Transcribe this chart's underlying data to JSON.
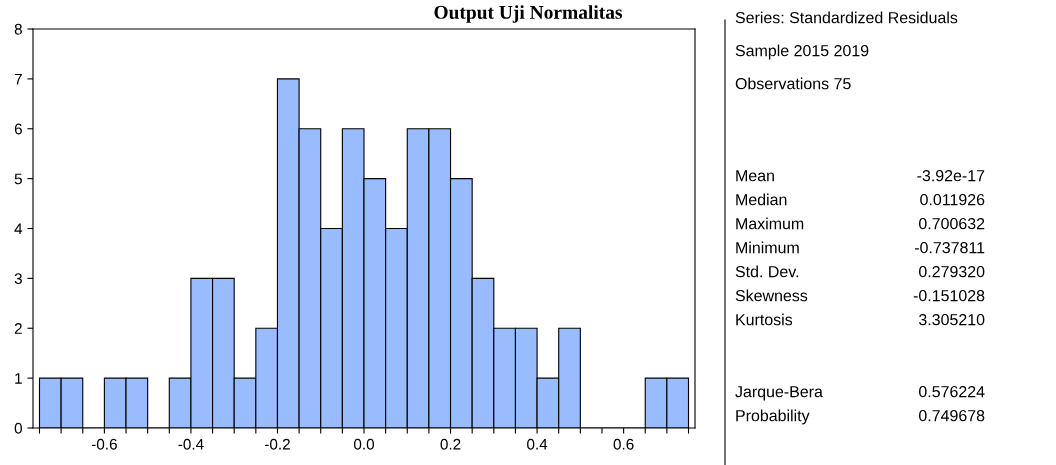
{
  "chart_data": {
    "type": "histogram",
    "title": "Output Uji Normalitas",
    "bins": [
      -0.75,
      -0.7,
      -0.65,
      -0.6,
      -0.55,
      -0.5,
      -0.45,
      -0.4,
      -0.35,
      -0.3,
      -0.25,
      -0.2,
      -0.15,
      -0.1,
      -0.05,
      0,
      0.05,
      0.1,
      0.15,
      0.2,
      0.25,
      0.3,
      0.35,
      0.4,
      0.45,
      0.5,
      0.55,
      0.6,
      0.65,
      0.7,
      0.75
    ],
    "values": [
      1,
      1,
      0,
      1,
      1,
      0,
      1,
      3,
      3,
      1,
      2,
      7,
      6,
      4,
      6,
      5,
      4,
      6,
      6,
      5,
      3,
      2,
      2,
      1,
      2,
      0,
      0,
      0,
      1,
      1
    ],
    "color": "#99bbff",
    "xlim": [
      -0.765,
      0.765
    ],
    "xticks": [
      {
        "value": -0.75,
        "label": null
      },
      {
        "value": -0.7,
        "label": null
      },
      {
        "value": -0.65,
        "label": null
      },
      {
        "value": -0.6,
        "label": "-0.6"
      },
      {
        "value": -0.55,
        "label": null
      },
      {
        "value": -0.5,
        "label": null
      },
      {
        "value": -0.45,
        "label": null
      },
      {
        "value": -0.4,
        "label": "-0.4"
      },
      {
        "value": -0.35,
        "label": null
      },
      {
        "value": -0.3,
        "label": null
      },
      {
        "value": -0.25,
        "label": null
      },
      {
        "value": -0.2,
        "label": "-0.2"
      },
      {
        "value": -0.15,
        "label": null
      },
      {
        "value": -0.1,
        "label": null
      },
      {
        "value": -0.05,
        "label": null
      },
      {
        "value": 0,
        "label": "0.0"
      },
      {
        "value": 0.05,
        "label": null
      },
      {
        "value": 0.1,
        "label": null
      },
      {
        "value": 0.15,
        "label": null
      },
      {
        "value": 0.2,
        "label": "0.2"
      },
      {
        "value": 0.25,
        "label": null
      },
      {
        "value": 0.3,
        "label": null
      },
      {
        "value": 0.35,
        "label": null
      },
      {
        "value": 0.4,
        "label": "0.4"
      },
      {
        "value": 0.45,
        "label": null
      },
      {
        "value": 0.5,
        "label": null
      },
      {
        "value": 0.55,
        "label": null
      },
      {
        "value": 0.6,
        "label": "0.6"
      },
      {
        "value": 0.65,
        "label": null
      },
      {
        "value": 0.7,
        "label": null
      },
      {
        "value": 0.75,
        "label": null
      }
    ],
    "ylim": [
      0,
      8
    ],
    "yticks": [
      0,
      1,
      2,
      3,
      4,
      5,
      6,
      7,
      8
    ],
    "grid": false,
    "annotations": [
      "Series: Standardized Residuals",
      "Sample 2015 2019",
      "Observations 75",
      "Mean",
      "-3.92e-17",
      "Median",
      "0.011926",
      "Maximum",
      "0.700632",
      "Minimum",
      "-0.737811",
      "Std. Dev.",
      "0.279320",
      "Skewness",
      "-0.151028",
      "Kurtosis",
      "3.305210",
      "Jarque-Bera",
      "0.576224",
      "Probability",
      "0.749678"
    ]
  }
}
